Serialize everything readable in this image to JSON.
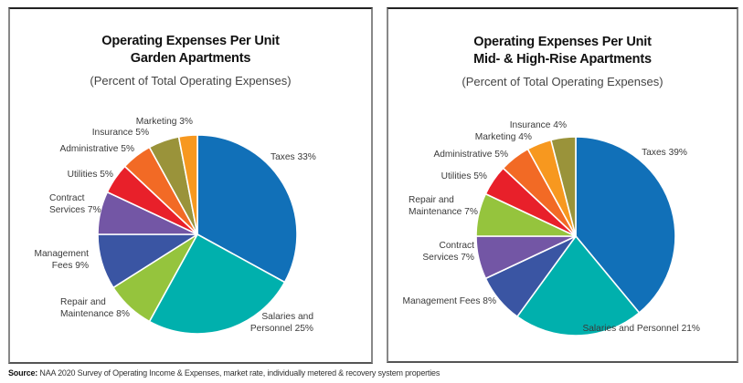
{
  "chart_data": [
    {
      "type": "pie",
      "title": "Operating Expenses Per Unit",
      "subtitle_line": "Garden Apartments",
      "note": "(Percent of Total Operating Expenses)",
      "start_angle": "12 o'clock",
      "direction": "clockwise",
      "slices": [
        {
          "label": "Taxes",
          "value": 33,
          "label_text": [
            "Taxes 33%"
          ],
          "color": "#1170b8"
        },
        {
          "label": "Salaries and Personnel",
          "value": 25,
          "label_text": [
            "Salaries and",
            "Personnel 25%"
          ],
          "color": "#00b0ad"
        },
        {
          "label": "Repair and Maintenance",
          "value": 8,
          "label_text": [
            "Repair and",
            "Maintenance 8%"
          ],
          "color": "#95c43d"
        },
        {
          "label": "Management Fees",
          "value": 9,
          "label_text": [
            "Management",
            "Fees 9%"
          ],
          "color": "#3a55a3"
        },
        {
          "label": "Contract Services",
          "value": 7,
          "label_text": [
            "Contract",
            "Services 7%"
          ],
          "color": "#7356a5"
        },
        {
          "label": "Utilities",
          "value": 5,
          "label_text": [
            "Utilities 5%"
          ],
          "color": "#e8202a"
        },
        {
          "label": "Administrative",
          "value": 5,
          "label_text": [
            "Administrative 5%"
          ],
          "color": "#f26a25"
        },
        {
          "label": "Insurance",
          "value": 5,
          "label_text": [
            "Insurance 5%"
          ],
          "color": "#9a933a"
        },
        {
          "label": "Marketing",
          "value": 3,
          "label_text": [
            "Marketing 3%"
          ],
          "color": "#f7981f"
        }
      ]
    },
    {
      "type": "pie",
      "title": "Operating Expenses Per Unit",
      "subtitle_line": "Mid- & High-Rise Apartments",
      "note": "(Percent of Total Operating Expenses)",
      "start_angle": "12 o'clock",
      "direction": "clockwise",
      "slices": [
        {
          "label": "Taxes",
          "value": 39,
          "label_text": [
            "Taxes 39%"
          ],
          "color": "#1170b8"
        },
        {
          "label": "Salaries and Personnel",
          "value": 21,
          "label_text": [
            "Salaries and Personnel 21%"
          ],
          "color": "#00b0ad"
        },
        {
          "label": "Management Fees",
          "value": 8,
          "label_text": [
            "Management Fees 8%"
          ],
          "color": "#3a55a3"
        },
        {
          "label": "Contract Services",
          "value": 7,
          "label_text": [
            "Contract",
            "Services 7%"
          ],
          "color": "#7356a5"
        },
        {
          "label": "Repair and Maintenance",
          "value": 7,
          "label_text": [
            "Repair and",
            "Maintenance 7%"
          ],
          "color": "#95c43d"
        },
        {
          "label": "Utilities",
          "value": 5,
          "label_text": [
            "Utilities 5%"
          ],
          "color": "#e8202a"
        },
        {
          "label": "Administrative",
          "value": 5,
          "label_text": [
            "Administrative 5%"
          ],
          "color": "#f26a25"
        },
        {
          "label": "Marketing",
          "value": 4,
          "label_text": [
            "Marketing 4%"
          ],
          "color": "#f7981f"
        },
        {
          "label": "Insurance",
          "value": 4,
          "label_text": [
            "Insurance 4%"
          ],
          "color": "#9a933a"
        }
      ]
    }
  ],
  "source": {
    "prefix": "Source:",
    "text": " NAA 2020 Survey of Operating Income & Expenses, market rate, individually metered & recovery system properties"
  }
}
